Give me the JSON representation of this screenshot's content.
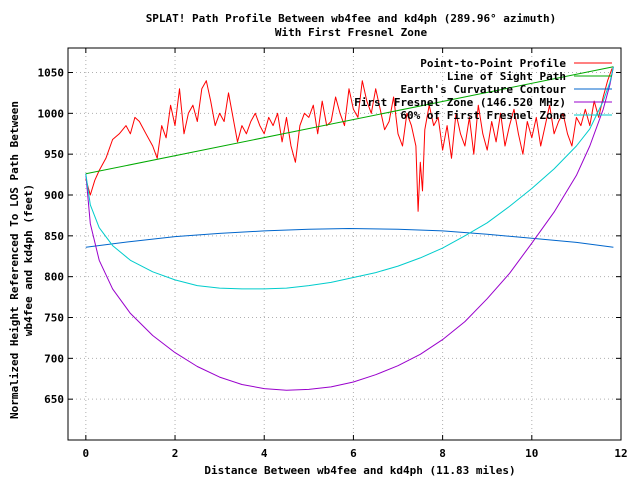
{
  "chart_data": {
    "type": "line",
    "title": [
      "SPLAT! Path Profile Between wb4fee and kd4ph (289.96° azimuth)",
      "With First Fresnel Zone"
    ],
    "xlabel": "Distance Between wb4fee and kd4ph (11.83 miles)",
    "ylabel": [
      "Normalized Height Referenced To LOS Path Between",
      "wb4fee and kd4ph (feet)"
    ],
    "xlim": [
      -0.4,
      12
    ],
    "ylim": [
      600,
      1080
    ],
    "xticks": [
      "0",
      "2",
      "4",
      "6",
      "8",
      "10",
      "12"
    ],
    "xtick_values": [
      0,
      2,
      4,
      6,
      8,
      10,
      12
    ],
    "yticks": [
      "650",
      "700",
      "750",
      "800",
      "850",
      "900",
      "950",
      "1000",
      "1050"
    ],
    "ytick_values": [
      650,
      700,
      750,
      800,
      850,
      900,
      950,
      1000,
      1050
    ],
    "grid": true,
    "legend_position": "top-right",
    "series": [
      {
        "name": "Point-to-Point Profile",
        "color": "#ff0000",
        "x": [
          0.0,
          0.1,
          0.2,
          0.3,
          0.45,
          0.6,
          0.75,
          0.9,
          1.0,
          1.1,
          1.2,
          1.35,
          1.5,
          1.6,
          1.7,
          1.8,
          1.9,
          2.0,
          2.1,
          2.2,
          2.3,
          2.4,
          2.5,
          2.6,
          2.7,
          2.8,
          2.9,
          3.0,
          3.1,
          3.2,
          3.3,
          3.4,
          3.5,
          3.6,
          3.7,
          3.8,
          3.9,
          4.0,
          4.1,
          4.2,
          4.3,
          4.4,
          4.5,
          4.6,
          4.7,
          4.8,
          4.9,
          5.0,
          5.1,
          5.2,
          5.3,
          5.4,
          5.5,
          5.6,
          5.7,
          5.8,
          5.9,
          6.0,
          6.1,
          6.2,
          6.3,
          6.4,
          6.5,
          6.6,
          6.7,
          6.8,
          6.9,
          7.0,
          7.1,
          7.2,
          7.3,
          7.4,
          7.45,
          7.5,
          7.55,
          7.6,
          7.7,
          7.8,
          7.9,
          8.0,
          8.1,
          8.2,
          8.3,
          8.4,
          8.5,
          8.6,
          8.7,
          8.8,
          8.9,
          9.0,
          9.1,
          9.2,
          9.3,
          9.4,
          9.5,
          9.6,
          9.7,
          9.8,
          9.9,
          10.0,
          10.1,
          10.2,
          10.3,
          10.4,
          10.5,
          10.6,
          10.7,
          10.8,
          10.9,
          11.0,
          11.1,
          11.2,
          11.3,
          11.4,
          11.5,
          11.6,
          11.7,
          11.8
        ],
        "values": [
          920,
          900,
          918,
          930,
          945,
          968,
          975,
          985,
          975,
          995,
          990,
          975,
          960,
          945,
          985,
          970,
          1010,
          985,
          1030,
          975,
          1000,
          1010,
          990,
          1030,
          1040,
          1015,
          985,
          1000,
          990,
          1025,
          995,
          965,
          985,
          975,
          990,
          1000,
          985,
          975,
          995,
          985,
          1000,
          965,
          995,
          960,
          940,
          985,
          1000,
          995,
          1010,
          975,
          1015,
          985,
          990,
          1020,
          1000,
          985,
          1030,
          1005,
          995,
          1040,
          1015,
          1000,
          1030,
          1005,
          980,
          990,
          1020,
          975,
          960,
          1000,
          985,
          960,
          880,
          940,
          905,
          980,
          1010,
          985,
          995,
          955,
          985,
          945,
          1000,
          975,
          960,
          995,
          950,
          1010,
          975,
          955,
          990,
          965,
          1000,
          960,
          985,
          1005,
          975,
          950,
          990,
          970,
          995,
          960,
          985,
          1010,
          975,
          990,
          1000,
          975,
          960,
          995,
          985,
          1005,
          985,
          1015,
          995,
          1020,
          1040,
          1055
        ]
      },
      {
        "name": "Line of Sight Path",
        "color": "#00aa00",
        "x": [
          0,
          11.83
        ],
        "values": [
          926,
          1057
        ]
      },
      {
        "name": "Earth's Curvature Contour",
        "color": "#0066cc",
        "x": [
          0,
          1,
          2,
          3,
          4,
          5,
          5.9,
          7,
          8,
          9,
          10,
          11,
          11.83
        ],
        "values": [
          836,
          843,
          849,
          853,
          856,
          858,
          859,
          858,
          856,
          852,
          847,
          842,
          836
        ]
      },
      {
        "name": "First Fresnel Zone (146.520 MHz)",
        "color": "#9900cc",
        "x": [
          0,
          0.1,
          0.3,
          0.6,
          1.0,
          1.5,
          2.0,
          2.5,
          3.0,
          3.5,
          4.0,
          4.5,
          5.0,
          5.5,
          6.0,
          6.5,
          7.0,
          7.5,
          8.0,
          8.5,
          9.0,
          9.5,
          10.0,
          10.5,
          11.0,
          11.3,
          11.6,
          11.75,
          11.83
        ],
        "values": [
          926,
          865,
          820,
          785,
          755,
          728,
          707,
          690,
          677,
          668,
          663,
          661,
          662,
          665,
          671,
          680,
          691,
          705,
          723,
          745,
          773,
          804,
          841,
          879,
          924,
          960,
          1005,
          1035,
          1057
        ]
      },
      {
        "name": "60% of First Fresnel Zone",
        "color": "#00cccc",
        "x": [
          0,
          0.1,
          0.3,
          0.6,
          1.0,
          1.5,
          2.0,
          2.5,
          3.0,
          3.5,
          4.0,
          4.5,
          5.0,
          5.5,
          6.0,
          6.5,
          7.0,
          7.5,
          8.0,
          8.5,
          9.0,
          9.5,
          10.0,
          10.5,
          11.0,
          11.3,
          11.6,
          11.75,
          11.83
        ],
        "values": [
          926,
          888,
          860,
          838,
          820,
          806,
          796,
          789,
          786,
          785,
          785,
          786,
          789,
          793,
          799,
          805,
          813,
          823,
          835,
          850,
          866,
          886,
          908,
          932,
          960,
          981,
          1015,
          1038,
          1057
        ]
      }
    ]
  }
}
